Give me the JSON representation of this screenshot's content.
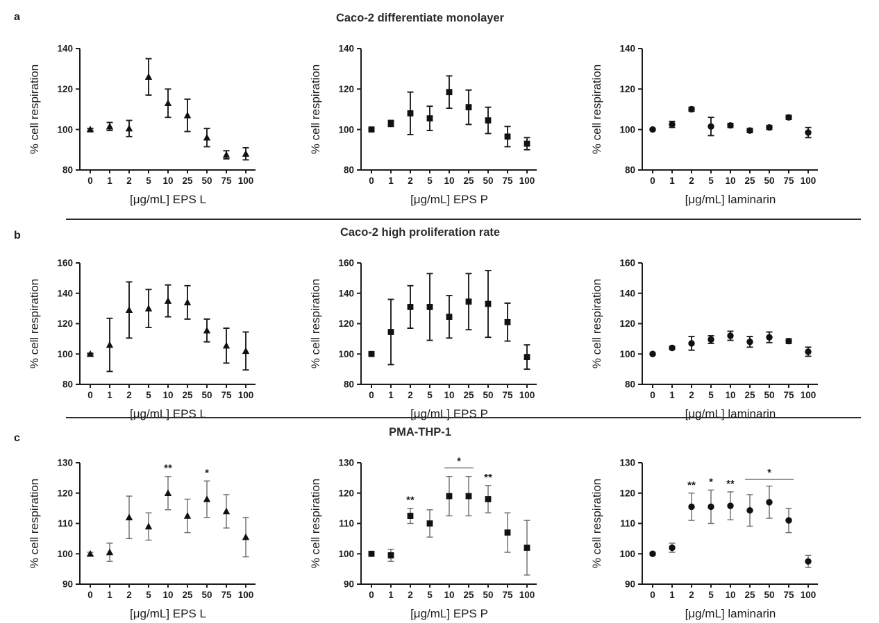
{
  "sections": [
    {
      "label": "a",
      "title": "Caco-2 differentiate monolayer"
    },
    {
      "label": "b",
      "title": "Caco-2 high proliferation rate"
    },
    {
      "label": "c",
      "title": "PMA-THP-1"
    }
  ],
  "colors": {
    "marker": "#111111",
    "axis": "#1c1c1c",
    "error_dark": "#1c1c1c",
    "error_gray": "#6a6a6a",
    "divider": "#2d2d2d"
  },
  "chart_data": [
    {
      "type": "scatter",
      "panel_title": "Caco-2 differentiate monolayer",
      "marker": "triangle",
      "x_categories": [
        "0",
        "1",
        "2",
        "5",
        "10",
        "25",
        "50",
        "75",
        "100"
      ],
      "values": [
        100,
        101.5,
        100.5,
        126,
        113,
        107,
        96,
        87.5,
        88
      ],
      "errors": [
        0.5,
        2,
        4,
        9,
        7,
        8,
        4.5,
        2,
        3
      ],
      "ylim": [
        80,
        140
      ],
      "yticks": [
        80,
        100,
        120,
        140
      ],
      "xlabel": "[μg/mL] EPS L",
      "ylabel": "% cell respiration",
      "error_color": "#1c1c1c",
      "error_width": 1.9,
      "annotations": []
    },
    {
      "type": "scatter",
      "panel_title": "Caco-2 differentiate monolayer",
      "marker": "square",
      "x_categories": [
        "0",
        "1",
        "2",
        "5",
        "10",
        "25",
        "50",
        "75",
        "100"
      ],
      "values": [
        100,
        103,
        108,
        105.5,
        118.5,
        111,
        104.5,
        96.5,
        93
      ],
      "errors": [
        0.5,
        1.5,
        10.5,
        6,
        8,
        8.5,
        6.5,
        5,
        3
      ],
      "ylim": [
        80,
        140
      ],
      "yticks": [
        80,
        100,
        120,
        140
      ],
      "xlabel": "[μg/mL] EPS P",
      "ylabel": "% cell respiration",
      "error_color": "#1c1c1c",
      "error_width": 1.9,
      "annotations": []
    },
    {
      "type": "scatter",
      "panel_title": "Caco-2 differentiate monolayer",
      "marker": "circle",
      "x_categories": [
        "0",
        "1",
        "2",
        "5",
        "10",
        "25",
        "50",
        "75",
        "100"
      ],
      "values": [
        100,
        102.5,
        110,
        101.5,
        102,
        99.5,
        101,
        106,
        98.5
      ],
      "errors": [
        0.5,
        1.5,
        1,
        4.5,
        1,
        1,
        1,
        1,
        2.5
      ],
      "ylim": [
        80,
        140
      ],
      "yticks": [
        80,
        100,
        120,
        140
      ],
      "xlabel": "[μg/mL] laminarin",
      "ylabel": "% cell respiration",
      "error_color": "#1c1c1c",
      "error_width": 1.9,
      "annotations": []
    },
    {
      "type": "scatter",
      "panel_title": "Caco-2 high proliferation rate",
      "marker": "triangle",
      "x_categories": [
        "0",
        "1",
        "2",
        "5",
        "10",
        "25",
        "50",
        "75",
        "100"
      ],
      "values": [
        100,
        106,
        129,
        130,
        135,
        134,
        115.5,
        105.5,
        102
      ],
      "errors": [
        0.5,
        17.5,
        18.5,
        12.5,
        10.5,
        11,
        7.5,
        11.5,
        12.5
      ],
      "ylim": [
        80,
        160
      ],
      "yticks": [
        80,
        100,
        120,
        140,
        160
      ],
      "xlabel": "[μg/mL] EPS L",
      "ylabel": "% cell respiration",
      "error_color": "#1c1c1c",
      "error_width": 1.9,
      "annotations": []
    },
    {
      "type": "scatter",
      "panel_title": "Caco-2 high proliferation rate",
      "marker": "square",
      "x_categories": [
        "0",
        "1",
        "2",
        "5",
        "10",
        "25",
        "50",
        "75",
        "100"
      ],
      "values": [
        100,
        114.5,
        131,
        131,
        124.5,
        134.5,
        133,
        121,
        98
      ],
      "errors": [
        0.5,
        21.5,
        14,
        22,
        14,
        18.5,
        22,
        12.5,
        8
      ],
      "ylim": [
        80,
        160
      ],
      "yticks": [
        80,
        100,
        120,
        140,
        160
      ],
      "xlabel": "[μg/mL] EPS P",
      "ylabel": "% cell respiration",
      "error_color": "#1c1c1c",
      "error_width": 1.9,
      "annotations": []
    },
    {
      "type": "scatter",
      "panel_title": "Caco-2 high proliferation rate",
      "marker": "circle",
      "x_categories": [
        "0",
        "1",
        "2",
        "5",
        "10",
        "25",
        "50",
        "75",
        "100"
      ],
      "values": [
        100,
        104,
        107,
        109.5,
        112,
        108,
        111,
        108.5,
        101.5
      ],
      "errors": [
        0.5,
        1,
        4.5,
        2.5,
        3,
        3.5,
        3.5,
        1.5,
        3
      ],
      "ylim": [
        80,
        160
      ],
      "yticks": [
        80,
        100,
        120,
        140,
        160
      ],
      "xlabel": "[μg/mL]  laminarin",
      "ylabel": "% cell respiration",
      "error_color": "#1c1c1c",
      "error_width": 1.9,
      "annotations": []
    },
    {
      "type": "scatter",
      "panel_title": "PMA-THP-1",
      "marker": "triangle",
      "x_categories": [
        "0",
        "1",
        "2",
        "5",
        "10",
        "25",
        "50",
        "75",
        "100"
      ],
      "values": [
        100,
        100.5,
        112,
        109,
        120,
        112.5,
        118,
        114,
        105.5
      ],
      "errors": [
        0.5,
        3,
        7,
        4.5,
        5.5,
        5.5,
        6,
        5.5,
        6.5
      ],
      "ylim": [
        90,
        130
      ],
      "yticks": [
        90,
        100,
        110,
        120,
        130
      ],
      "xlabel": "[μg/mL] EPS L",
      "ylabel": "% cell respiration",
      "error_color": "#6a6a6a",
      "error_width": 1.4,
      "annotations": [
        {
          "type": "stars",
          "index": 4,
          "text": "**"
        },
        {
          "type": "stars",
          "index": 6,
          "text": "*"
        }
      ]
    },
    {
      "type": "scatter",
      "panel_title": "PMA-THP-1",
      "marker": "square",
      "x_categories": [
        "0",
        "1",
        "2",
        "5",
        "10",
        "25",
        "50",
        "75",
        "100"
      ],
      "values": [
        100,
        99.5,
        112.5,
        110,
        119,
        119,
        118,
        107,
        102
      ],
      "errors": [
        0.3,
        2,
        2.5,
        4.5,
        6.5,
        6.5,
        4.5,
        6.5,
        9
      ],
      "ylim": [
        90,
        130
      ],
      "yticks": [
        90,
        100,
        110,
        120,
        130
      ],
      "xlabel": "[μg/mL] EPS P",
      "ylabel": "% cell respiration",
      "error_color": "#6a6a6a",
      "error_width": 1.4,
      "annotations": [
        {
          "type": "stars",
          "index": 2,
          "text": "**"
        },
        {
          "type": "bracket",
          "from": 4,
          "to": 5,
          "text": "*",
          "y": 128.3
        },
        {
          "type": "stars",
          "index": 6,
          "text": "**"
        }
      ]
    },
    {
      "type": "scatter",
      "panel_title": "PMA-THP-1",
      "marker": "circle",
      "x_categories": [
        "0",
        "1",
        "2",
        "5",
        "10",
        "25",
        "50",
        "75",
        "100"
      ],
      "values": [
        100,
        102,
        115.5,
        115.5,
        115.8,
        114.3,
        117,
        111,
        97.5
      ],
      "errors": [
        0.4,
        1.5,
        4.5,
        5.5,
        4.6,
        5.2,
        5.3,
        4,
        2
      ],
      "ylim": [
        90,
        130
      ],
      "yticks": [
        90,
        100,
        110,
        120,
        130
      ],
      "xlabel": "[μg/mL] laminarin",
      "ylabel": "% cell respiration",
      "error_color": "#6a6a6a",
      "error_width": 1.4,
      "annotations": [
        {
          "type": "stars",
          "index": 2,
          "text": "**"
        },
        {
          "type": "stars",
          "index": 3,
          "text": "*"
        },
        {
          "type": "stars",
          "index": 4,
          "text": "**"
        },
        {
          "type": "bracket",
          "from": 5,
          "to": 7,
          "text": "*",
          "y": 124.5
        }
      ]
    }
  ]
}
